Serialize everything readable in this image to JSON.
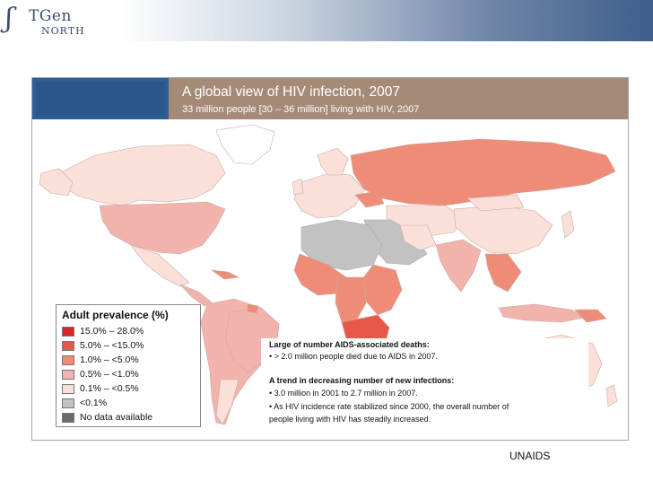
{
  "logo": {
    "text_main": "TGen",
    "text_sub": "NORTH"
  },
  "header": {
    "title": "A global view of HIV infection, 2007",
    "subtitle": "33 million people [30 – 36 million] living with HIV, 2007"
  },
  "legend": {
    "title": "Adult prevalence (%)",
    "items": [
      {
        "label": "15.0% – 28.0%",
        "color": "#d9262b"
      },
      {
        "label": "5.0% – <15.0%",
        "color": "#e8584a"
      },
      {
        "label": "1.0% – <5.0%",
        "color": "#ef8c78"
      },
      {
        "label": "0.5% – <1.0%",
        "color": "#f3b3ad"
      },
      {
        "label": "0.1% – <0.5%",
        "color": "#fae0d8"
      },
      {
        "label": "<0.1%",
        "color": "#c2c2c2"
      },
      {
        "label": "No data available",
        "color": "#6b6b6b"
      }
    ]
  },
  "notes": {
    "deaths_heading": "Large of number AIDS-associated deaths:",
    "deaths_line": "• > 2.0 million people died due to AIDS in 2007.",
    "trend_heading": "A trend in decreasing number of new infections:",
    "trend_line1": "• 3.0 million in 2001 to 2.7 million in 2007.",
    "trend_line2": "• As HIV incidence rate stabilized since 2000, the overall number of",
    "trend_line3": "people living with HIV has steadily increased."
  },
  "source": "UNAIDS"
}
